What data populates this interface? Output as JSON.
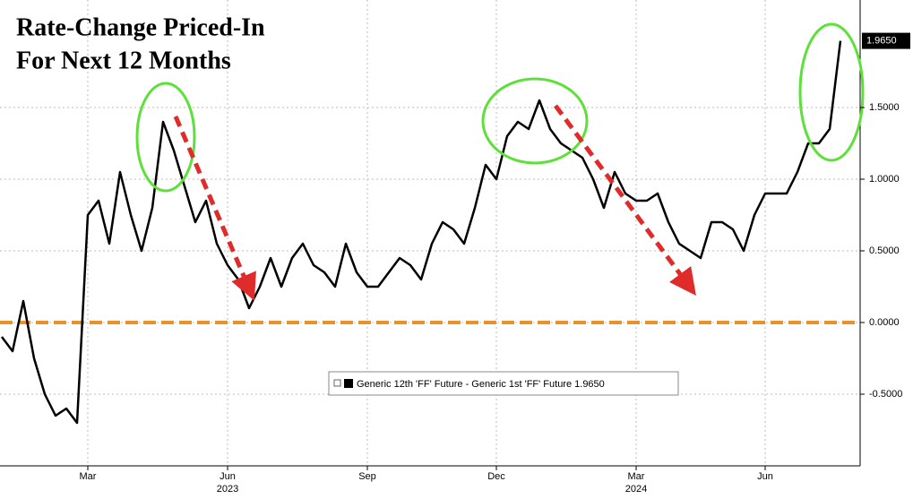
{
  "chart_data": {
    "type": "line",
    "title_lines": [
      "Rate-Change Priced-In",
      "For Next 12 Months"
    ],
    "categories": [
      null,
      null,
      null,
      null,
      null,
      null,
      null,
      null,
      "Mar",
      null,
      null,
      null,
      null,
      null,
      null,
      null,
      null,
      null,
      null,
      null,
      null,
      "Jun",
      null,
      null,
      null,
      null,
      null,
      null,
      null,
      null,
      null,
      null,
      null,
      null,
      "Sep",
      null,
      null,
      null,
      null,
      null,
      null,
      null,
      null,
      null,
      null,
      null,
      "Dec",
      null,
      null,
      null,
      null,
      null,
      null,
      null,
      null,
      null,
      null,
      null,
      null,
      "Mar",
      null,
      null,
      null,
      null,
      null,
      null,
      null,
      null,
      null,
      null,
      null,
      "Jun",
      null,
      null,
      null,
      null,
      null,
      null,
      null
    ],
    "category_groups": [
      null,
      null,
      null,
      null,
      null,
      null,
      null,
      null,
      null,
      null,
      null,
      null,
      null,
      null,
      null,
      null,
      null,
      null,
      null,
      null,
      null,
      "2023",
      null,
      null,
      null,
      null,
      null,
      null,
      null,
      null,
      null,
      null,
      null,
      null,
      null,
      null,
      null,
      null,
      null,
      null,
      null,
      null,
      null,
      null,
      null,
      null,
      null,
      null,
      null,
      null,
      null,
      null,
      null,
      null,
      null,
      null,
      null,
      null,
      null,
      "2024",
      null,
      null,
      null,
      null,
      null,
      null,
      null,
      null,
      null,
      null,
      null,
      null,
      null,
      null,
      null,
      null,
      null,
      null,
      null
    ],
    "series": [
      {
        "name": "Generic 12th 'FF' Future - Generic 1st 'FF' Future 1.9650",
        "color": "#000000",
        "values": [
          -0.1,
          -0.2,
          0.15,
          -0.25,
          -0.5,
          -0.65,
          -0.6,
          -0.7,
          0.75,
          0.85,
          0.55,
          1.05,
          0.75,
          0.5,
          0.8,
          1.4,
          1.2,
          0.95,
          0.7,
          0.85,
          0.55,
          0.4,
          0.3,
          0.1,
          0.25,
          0.45,
          0.25,
          0.45,
          0.55,
          0.4,
          0.35,
          0.25,
          0.55,
          0.35,
          0.25,
          0.25,
          0.35,
          0.45,
          0.4,
          0.3,
          0.55,
          0.7,
          0.65,
          0.55,
          0.8,
          1.1,
          1.0,
          1.3,
          1.4,
          1.35,
          1.55,
          1.35,
          1.25,
          1.2,
          1.15,
          1.0,
          0.8,
          1.05,
          0.9,
          0.85,
          0.85,
          0.9,
          0.7,
          0.55,
          0.5,
          0.45,
          0.7,
          0.7,
          0.65,
          0.5,
          0.75,
          0.9,
          0.9,
          0.9,
          1.05,
          1.25,
          1.25,
          1.35,
          1.965
        ],
        "last_value_label": "1.9650"
      }
    ],
    "ylim": [
      -1.0,
      2.25
    ],
    "yticks": [
      {
        "value": -0.5,
        "label": "-0.5000"
      },
      {
        "value": 0,
        "label": "0.0000"
      },
      {
        "value": 0.5,
        "label": "0.5000"
      },
      {
        "value": 1.0,
        "label": "1.0000"
      },
      {
        "value": 1.5,
        "label": "1.5000"
      }
    ],
    "reference_line": {
      "value": 0,
      "color": "#e8922b"
    },
    "grid": true
  }
}
